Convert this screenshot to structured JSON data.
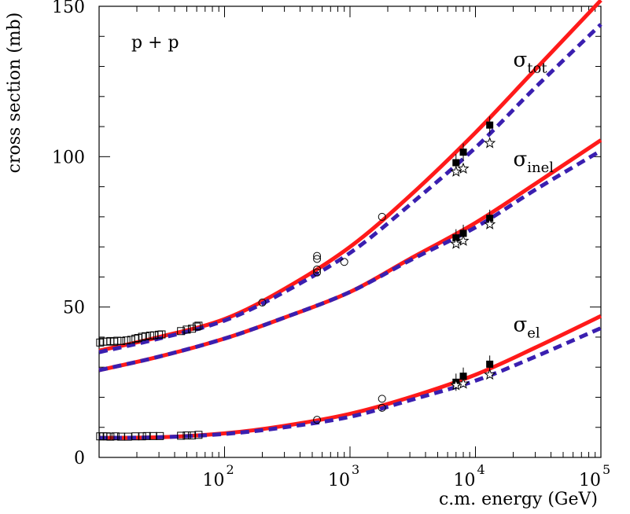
{
  "chart_data": {
    "type": "line",
    "panel_label": "p + p",
    "xlabel": "c.m. energy (GeV)",
    "ylabel": "cross section (mb)",
    "x_scale": "log",
    "xlim": [
      10,
      100000
    ],
    "ylim": [
      0,
      150
    ],
    "x_tick_labels": [
      {
        "value": 100,
        "base": "10",
        "exp": "2"
      },
      {
        "value": 1000,
        "base": "10",
        "exp": "3"
      },
      {
        "value": 10000,
        "base": "10",
        "exp": "4"
      },
      {
        "value": 100000,
        "base": "10",
        "exp": "5"
      }
    ],
    "y_tick_labels": [
      {
        "value": 0,
        "text": "0"
      },
      {
        "value": 50,
        "text": "50"
      },
      {
        "value": 100,
        "text": "100"
      },
      {
        "value": 150,
        "text": "150"
      }
    ],
    "series_labels": [
      {
        "key": "tot",
        "sym": "σ",
        "sub": "tot",
        "x": 20000,
        "y": 130
      },
      {
        "key": "inel",
        "sym": "σ",
        "sub": "inel",
        "x": 20000,
        "y": 97
      },
      {
        "key": "el",
        "sym": "σ",
        "sub": "el",
        "x": 20000,
        "y": 42
      }
    ],
    "colors": {
      "solid": "#ff1a1a",
      "dashed": "#3a1fb0",
      "markers": "#000000"
    },
    "lines": [
      {
        "group": "tot",
        "style": "solid",
        "x": [
          10,
          30,
          100,
          300,
          1000,
          3000,
          10000,
          30000,
          100000
        ],
        "y": [
          35.5,
          40,
          46,
          56,
          70,
          87,
          108,
          129,
          152
        ]
      },
      {
        "group": "tot",
        "style": "dashed",
        "x": [
          10,
          30,
          100,
          300,
          1000,
          3000,
          10000,
          30000,
          100000
        ],
        "y": [
          35,
          39.5,
          45.5,
          55,
          68,
          84,
          103,
          123,
          144
        ]
      },
      {
        "group": "inel",
        "style": "solid",
        "x": [
          10,
          30,
          100,
          300,
          1000,
          3000,
          10000,
          30000,
          100000
        ],
        "y": [
          29,
          33.5,
          39.5,
          46.5,
          55,
          66,
          78,
          91,
          105.5
        ]
      },
      {
        "group": "inel",
        "style": "dashed",
        "x": [
          10,
          30,
          100,
          300,
          1000,
          3000,
          10000,
          30000,
          100000
        ],
        "y": [
          29,
          33.5,
          39.5,
          46.5,
          55,
          65.5,
          76.5,
          89,
          102
        ]
      },
      {
        "group": "el",
        "style": "solid",
        "x": [
          10,
          30,
          100,
          300,
          1000,
          3000,
          10000,
          30000,
          100000
        ],
        "y": [
          6.5,
          6.7,
          8,
          10.5,
          14.5,
          20,
          27.5,
          36.5,
          47
        ]
      },
      {
        "group": "el",
        "style": "dashed",
        "x": [
          10,
          30,
          100,
          300,
          1000,
          3000,
          10000,
          30000,
          100000
        ],
        "y": [
          6.5,
          6.7,
          7.8,
          10,
          13.5,
          19,
          25.5,
          33.5,
          43
        ]
      }
    ],
    "markers": [
      {
        "type": "open-square",
        "x": [
          10.2,
          10.8,
          11.5,
          12.3,
          13.2,
          14,
          15,
          16.5,
          18,
          19.5,
          20.5,
          22,
          23.5,
          25.5,
          27.5,
          30,
          31.5,
          45,
          50,
          55,
          60,
          62
        ],
        "y": [
          38.2,
          38.5,
          38.5,
          38.7,
          38.5,
          38.8,
          38.7,
          38.9,
          39.1,
          39.5,
          39.7,
          40.1,
          40.3,
          40.5,
          40.6,
          40.8,
          40.9,
          42,
          42.5,
          42.8,
          43.5,
          43.8
        ]
      },
      {
        "type": "open-square",
        "x": [
          10.2,
          10.8,
          11.5,
          12.3,
          13.5,
          15,
          17,
          19.5,
          22,
          24,
          27,
          30.5,
          45,
          50,
          55,
          62
        ],
        "y": [
          7,
          7,
          7,
          6.9,
          7,
          6.9,
          6.9,
          7,
          7,
          7.1,
          7.1,
          7.1,
          7.2,
          7.3,
          7.3,
          7.5
        ]
      },
      {
        "type": "open-circle",
        "x": [
          200,
          546,
          546,
          546,
          546,
          900,
          1800
        ],
        "y": [
          51.5,
          61.5,
          62.5,
          66,
          67,
          65,
          80
        ]
      },
      {
        "type": "open-circle",
        "x": [
          546,
          1800,
          1800
        ],
        "y": [
          12.5,
          16.5,
          19.5
        ]
      },
      {
        "type": "filled-square",
        "x": [
          7000,
          8000,
          13000
        ],
        "y": [
          98,
          101.5,
          110.5
        ]
      },
      {
        "type": "filled-square",
        "x": [
          7000,
          8000,
          13000
        ],
        "y": [
          73,
          74.5,
          79.5
        ]
      },
      {
        "type": "filled-square",
        "x": [
          7000,
          8000,
          13000
        ],
        "y": [
          25,
          27,
          31
        ]
      },
      {
        "type": "open-star",
        "x": [
          7000,
          8000,
          13000
        ],
        "y": [
          95,
          96,
          104.5
        ]
      },
      {
        "type": "open-star",
        "x": [
          7000,
          8000,
          13000
        ],
        "y": [
          71,
          72,
          77.5
        ]
      },
      {
        "type": "open-star",
        "x": [
          7000,
          8000,
          13000
        ],
        "y": [
          24,
          24.5,
          27.5
        ]
      }
    ]
  }
}
